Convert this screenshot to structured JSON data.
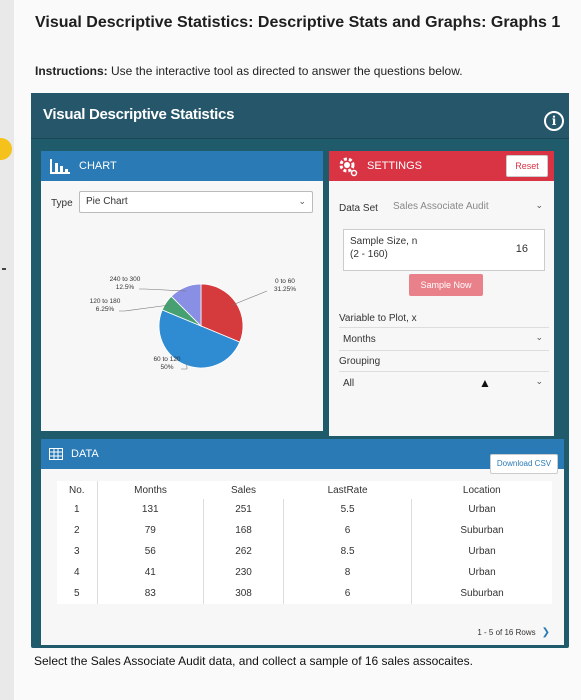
{
  "page": {
    "title": "Visual Descriptive Statistics: Descriptive Stats and Graphs: Graphs 1",
    "instructions_bold": "Instructions:",
    "instructions_text": " Use the interactive tool as directed to answer the questions below.",
    "footer": "Select the Sales Associate Audit data, and collect a sample of 16 sales assocaites."
  },
  "app": {
    "title": "Visual Descriptive Statistics",
    "info_icon": "info-icon"
  },
  "chart_panel": {
    "header": "CHART",
    "icon": "bar-chart-icon",
    "type_label": "Type",
    "type_value": "Pie Chart"
  },
  "chart_data": {
    "type": "pie",
    "categories": [
      "0 to 60",
      "60 to 120",
      "120 to 180",
      "240 to 300"
    ],
    "values": [
      31.25,
      50,
      6.25,
      12.5
    ],
    "labels": [
      "0 to 60\n31.25%",
      "60 to 120\n50%",
      "120 to 180\n6.25%",
      "240 to 300\n12.5%"
    ],
    "colors": [
      "#d53a3c",
      "#2f8bd2",
      "#46a071",
      "#8a8fe6"
    ]
  },
  "settings_panel": {
    "header": "SETTINGS",
    "icon": "gear-icon",
    "reset_label": "Reset",
    "dataset_label": "Data Set",
    "dataset_value": "Sales Associate Audit",
    "sample_size_label_line1": "Sample Size, n",
    "sample_size_label_line2": "(2 - 160)",
    "sample_size_value": "16",
    "sample_button": "Sample Now",
    "variable_label": "Variable to Plot, x",
    "variable_value": "Months",
    "grouping_label": "Grouping",
    "grouping_value": "All"
  },
  "data_panel": {
    "header": "DATA",
    "icon": "table-icon",
    "download_label": "Download CSV",
    "columns": [
      "No.",
      "Months",
      "Sales",
      "LastRate",
      "Location"
    ],
    "rows": [
      [
        "1",
        "131",
        "251",
        "5.5",
        "Urban"
      ],
      [
        "2",
        "79",
        "168",
        "6",
        "Suburban"
      ],
      [
        "3",
        "56",
        "262",
        "8.5",
        "Urban"
      ],
      [
        "4",
        "41",
        "230",
        "8",
        "Urban"
      ],
      [
        "5",
        "83",
        "308",
        "6",
        "Suburban"
      ]
    ],
    "pagination": "1 - 5 of 16 Rows"
  },
  "colors": {
    "app_bg": "#1f5b6b",
    "chart_header": "#2a7ab5",
    "settings_header": "#d93444",
    "sample_button": "#e8818a"
  }
}
